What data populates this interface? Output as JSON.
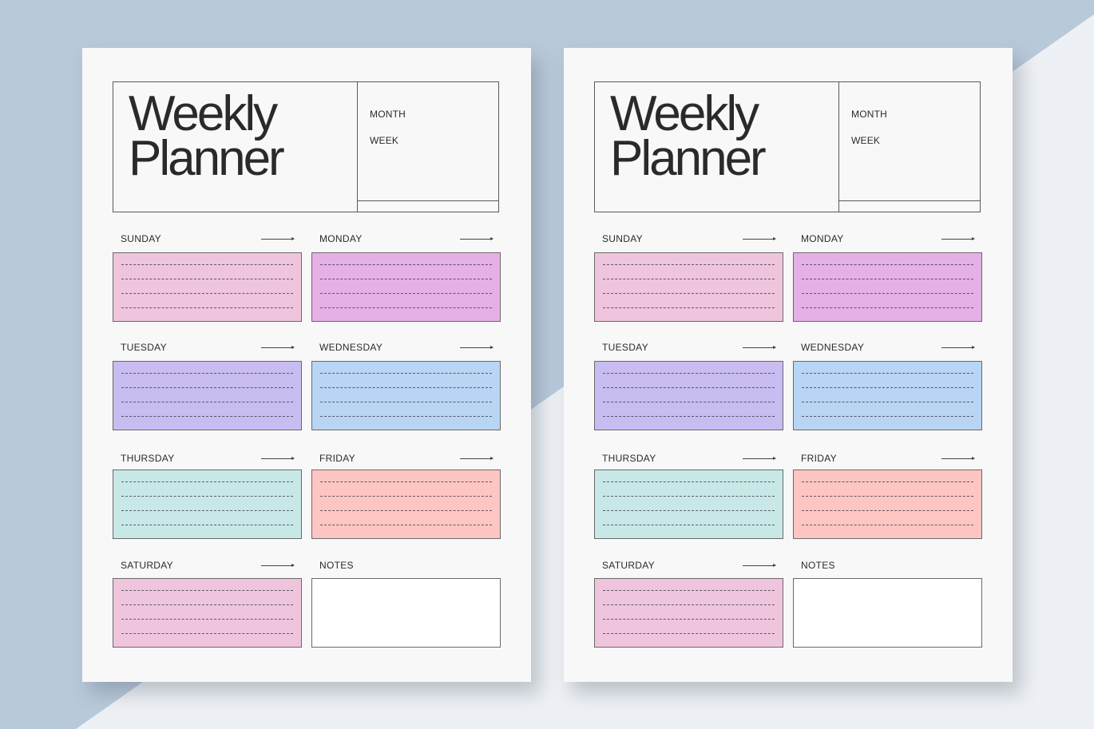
{
  "planner": {
    "title_line1": "Weekly",
    "title_line2": "Planner",
    "month_label": "MONTH",
    "week_label": "WEEK",
    "days": [
      {
        "label": "SUNDAY",
        "color": "#eec5dc"
      },
      {
        "label": "MONDAY",
        "color": "#e5b0e6"
      },
      {
        "label": "TUESDAY",
        "color": "#c9bcf1"
      },
      {
        "label": "WEDNESDAY",
        "color": "#b8d5f4"
      },
      {
        "label": "THURSDAY",
        "color": "#c7e8e6"
      },
      {
        "label": "FRIDAY",
        "color": "#fdc6c3"
      },
      {
        "label": "SATURDAY",
        "color": "#eec5dc"
      }
    ],
    "notes_label": "NOTES"
  },
  "colors": {
    "background_blue": "#b8c9da",
    "background_light": "#edf0f4",
    "paper": "#f8f8f8",
    "ink": "#2a2a2a"
  }
}
